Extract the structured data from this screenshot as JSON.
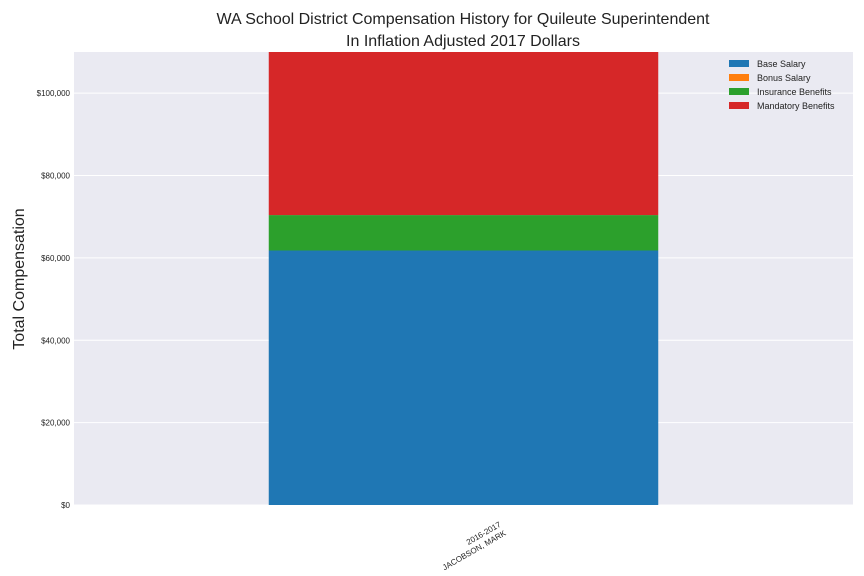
{
  "chart_data": {
    "type": "bar",
    "stacked": true,
    "title": [
      "WA School District Compensation History for Quileute Superintendent",
      "In Inflation Adjusted 2017 Dollars"
    ],
    "xlabel": "",
    "ylabel": "Total Compensation",
    "ylim": [
      0,
      110000
    ],
    "yticks": [
      0,
      20000,
      40000,
      60000,
      80000,
      100000
    ],
    "ytick_labels": [
      "$0",
      "$20,000",
      "$40,000",
      "$60,000",
      "$80,000",
      "$100,000"
    ],
    "categories": [
      [
        "2016-2017",
        "JACOBSON, MARK"
      ]
    ],
    "series": [
      {
        "name": "Base Salary",
        "color": "#1f77b4",
        "values": [
          61800
        ]
      },
      {
        "name": "Bonus Salary",
        "color": "#ff7f0e",
        "values": [
          0
        ]
      },
      {
        "name": "Insurance Benefits",
        "color": "#2ca02c",
        "values": [
          8600
        ]
      },
      {
        "name": "Mandatory Benefits",
        "color": "#d62728",
        "values": [
          39600
        ]
      }
    ],
    "legend_position": "top-right",
    "grid": true,
    "background": "#eaeaf2"
  }
}
